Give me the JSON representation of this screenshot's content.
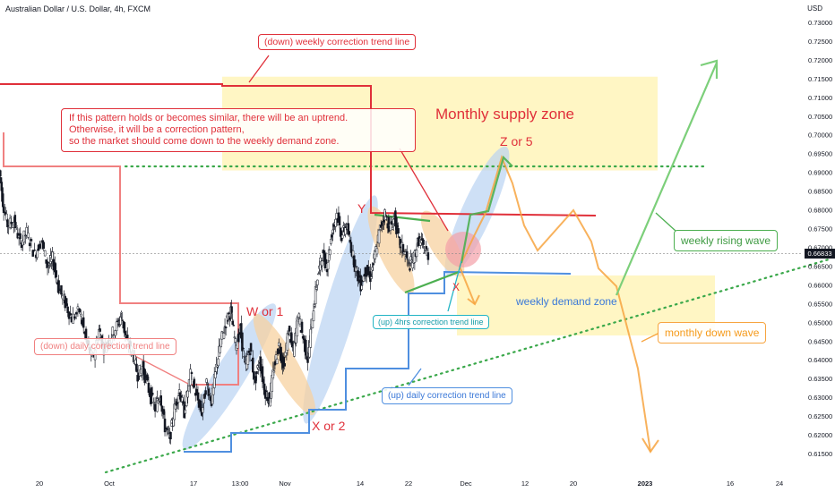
{
  "header": {
    "title": "Australian Dollar / U.S. Dollar, 4h, FXCM",
    "currency": "USD",
    "price_tag": "0.66833"
  },
  "chart_data": {
    "type": "candlestick",
    "ylim": [
      0.61,
      0.735
    ],
    "y_ticks": [
      "0.73000",
      "0.72500",
      "0.72000",
      "0.71500",
      "0.71000",
      "0.70500",
      "0.70000",
      "0.69500",
      "0.69000",
      "0.68500",
      "0.68000",
      "0.67500",
      "0.67000",
      "0.66500",
      "0.66000",
      "0.65500",
      "0.65000",
      "0.64500",
      "0.64000",
      "0.63500",
      "0.63000",
      "0.62500",
      "0.62000",
      "0.61500"
    ],
    "x_ticks": [
      {
        "label": "20",
        "bold": false
      },
      {
        "label": "Oct",
        "bold": false
      },
      {
        "label": "17",
        "bold": false
      },
      {
        "label": "13:00",
        "bold": false
      },
      {
        "label": "Nov",
        "bold": false
      },
      {
        "label": "14",
        "bold": false
      },
      {
        "label": "22",
        "bold": false
      },
      {
        "label": "Dec",
        "bold": false
      },
      {
        "label": "12",
        "bold": false
      },
      {
        "label": "20",
        "bold": false
      },
      {
        "label": "2023",
        "bold": true
      },
      {
        "label": "16",
        "bold": false
      },
      {
        "label": "24",
        "bold": false
      }
    ],
    "last_price": 0.66833,
    "price_path": [
      [
        0,
        0.6905
      ],
      [
        0.004,
        0.682
      ],
      [
        0.01,
        0.676
      ],
      [
        0.018,
        0.677
      ],
      [
        0.026,
        0.671
      ],
      [
        0.034,
        0.674
      ],
      [
        0.044,
        0.668
      ],
      [
        0.052,
        0.672
      ],
      [
        0.06,
        0.665
      ],
      [
        0.066,
        0.667
      ],
      [
        0.074,
        0.659
      ],
      [
        0.082,
        0.655
      ],
      [
        0.09,
        0.651
      ],
      [
        0.1,
        0.653
      ],
      [
        0.108,
        0.645
      ],
      [
        0.116,
        0.64
      ],
      [
        0.124,
        0.648
      ],
      [
        0.13,
        0.643
      ],
      [
        0.138,
        0.646
      ],
      [
        0.146,
        0.649
      ],
      [
        0.152,
        0.652
      ],
      [
        0.158,
        0.645
      ],
      [
        0.166,
        0.642
      ],
      [
        0.172,
        0.636
      ],
      [
        0.178,
        0.638
      ],
      [
        0.186,
        0.632
      ],
      [
        0.194,
        0.627
      ],
      [
        0.2,
        0.631
      ],
      [
        0.206,
        0.622
      ],
      [
        0.212,
        0.619
      ],
      [
        0.218,
        0.627
      ],
      [
        0.224,
        0.632
      ],
      [
        0.23,
        0.626
      ],
      [
        0.238,
        0.636
      ],
      [
        0.246,
        0.63
      ],
      [
        0.252,
        0.626
      ],
      [
        0.258,
        0.634
      ],
      [
        0.264,
        0.629
      ],
      [
        0.27,
        0.638
      ],
      [
        0.276,
        0.645
      ],
      [
        0.282,
        0.65
      ],
      [
        0.288,
        0.653
      ],
      [
        0.294,
        0.644
      ],
      [
        0.3,
        0.648
      ],
      [
        0.306,
        0.638
      ],
      [
        0.312,
        0.643
      ],
      [
        0.318,
        0.634
      ],
      [
        0.324,
        0.64
      ],
      [
        0.33,
        0.632
      ],
      [
        0.336,
        0.629
      ],
      [
        0.342,
        0.638
      ],
      [
        0.348,
        0.644
      ],
      [
        0.354,
        0.638
      ],
      [
        0.36,
        0.648
      ],
      [
        0.366,
        0.642
      ],
      [
        0.372,
        0.652
      ],
      [
        0.378,
        0.646
      ],
      [
        0.384,
        0.64
      ],
      [
        0.39,
        0.652
      ],
      [
        0.396,
        0.662
      ],
      [
        0.402,
        0.668
      ],
      [
        0.408,
        0.665
      ],
      [
        0.414,
        0.674
      ],
      [
        0.42,
        0.679
      ],
      [
        0.426,
        0.673
      ],
      [
        0.432,
        0.676
      ],
      [
        0.438,
        0.67
      ],
      [
        0.444,
        0.664
      ],
      [
        0.45,
        0.66
      ],
      [
        0.456,
        0.664
      ],
      [
        0.462,
        0.662
      ],
      [
        0.468,
        0.668
      ],
      [
        0.474,
        0.675
      ],
      [
        0.48,
        0.679
      ],
      [
        0.486,
        0.675
      ],
      [
        0.492,
        0.678
      ],
      [
        0.498,
        0.671
      ],
      [
        0.504,
        0.669
      ],
      [
        0.51,
        0.665
      ],
      [
        0.516,
        0.667
      ],
      [
        0.522,
        0.672
      ],
      [
        0.528,
        0.67
      ],
      [
        0.534,
        0.668
      ]
    ]
  },
  "annotations": {
    "down_weekly": "(down) weekly correction trend line",
    "note_lines": [
      "If this pattern holds or becomes similar, there will be an uptrend.",
      "Otherwise, it will be a correction pattern,",
      "so the market should come down to the weekly demand zone."
    ],
    "monthly_supply": "Monthly supply zone",
    "z5": "Z or 5",
    "y_label": "Y",
    "w1": "W or 1",
    "x2": "X or 2",
    "x_label": "X",
    "down_daily": "(down) daily correction trend line",
    "up_4h": "(up) 4hrs correction trend line",
    "weekly_demand": "weekly demand zone",
    "up_daily": "(up) daily correction trend line",
    "weekly_rising": "weekly rising wave",
    "monthly_down": "monthly down wave"
  },
  "colors": {
    "up_candle": "#131722",
    "red": "#e0303a",
    "pink": "#f08080",
    "blue": "#4f8fe0",
    "green": "#4caf50",
    "orange": "#f7a541",
    "supply_zone": "#fff3b0",
    "blue_wave": "#b9d3f2",
    "orange_wave": "#f7d2a0"
  }
}
